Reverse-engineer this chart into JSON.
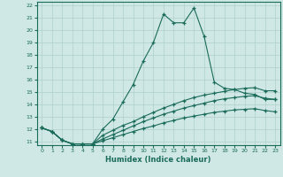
{
  "xlabel": "Humidex (Indice chaleur)",
  "xlim": [
    -0.5,
    23.5
  ],
  "ylim": [
    10.7,
    22.3
  ],
  "xticks": [
    0,
    1,
    2,
    3,
    4,
    5,
    6,
    7,
    8,
    9,
    10,
    11,
    12,
    13,
    14,
    15,
    16,
    17,
    18,
    19,
    20,
    21,
    22,
    23
  ],
  "yticks": [
    11,
    12,
    13,
    14,
    15,
    16,
    17,
    18,
    19,
    20,
    21,
    22
  ],
  "bg_color": "#cfe8e5",
  "grid_color": "#aed0cc",
  "line_color": "#1a6b5a",
  "line1_x": [
    0,
    1,
    2,
    3,
    4,
    5,
    6,
    7,
    8,
    9,
    10,
    11,
    12,
    13,
    14,
    15,
    16,
    17,
    18,
    19,
    20,
    21,
    22,
    23
  ],
  "line1_y": [
    12.1,
    11.8,
    11.1,
    10.8,
    10.8,
    10.8,
    12.0,
    12.8,
    14.2,
    15.6,
    17.5,
    19.0,
    21.3,
    20.6,
    20.6,
    21.8,
    19.5,
    15.8,
    15.3,
    15.2,
    14.9,
    14.8,
    14.4,
    14.4
  ],
  "line2_x": [
    0,
    1,
    2,
    3,
    4,
    5,
    6,
    7,
    8,
    9,
    10,
    11,
    12,
    13,
    14,
    15,
    16,
    17,
    18,
    19,
    20,
    21,
    22,
    23
  ],
  "line2_y": [
    12.1,
    11.8,
    11.1,
    10.8,
    10.8,
    10.8,
    11.5,
    11.9,
    12.3,
    12.6,
    13.0,
    13.35,
    13.7,
    14.0,
    14.3,
    14.55,
    14.75,
    14.9,
    15.05,
    15.2,
    15.3,
    15.35,
    15.1,
    15.1
  ],
  "line3_x": [
    0,
    1,
    2,
    3,
    4,
    5,
    6,
    7,
    8,
    9,
    10,
    11,
    12,
    13,
    14,
    15,
    16,
    17,
    18,
    19,
    20,
    21,
    22,
    23
  ],
  "line3_y": [
    12.1,
    11.8,
    11.1,
    10.8,
    10.8,
    10.8,
    11.2,
    11.55,
    11.9,
    12.25,
    12.6,
    12.9,
    13.2,
    13.45,
    13.7,
    13.9,
    14.1,
    14.3,
    14.45,
    14.55,
    14.65,
    14.7,
    14.5,
    14.4
  ],
  "line4_x": [
    0,
    1,
    2,
    3,
    4,
    5,
    6,
    7,
    8,
    9,
    10,
    11,
    12,
    13,
    14,
    15,
    16,
    17,
    18,
    19,
    20,
    21,
    22,
    23
  ],
  "line4_y": [
    12.1,
    11.8,
    11.1,
    10.8,
    10.8,
    10.8,
    11.05,
    11.3,
    11.55,
    11.8,
    12.05,
    12.25,
    12.5,
    12.7,
    12.9,
    13.05,
    13.2,
    13.35,
    13.45,
    13.55,
    13.6,
    13.65,
    13.5,
    13.4
  ]
}
